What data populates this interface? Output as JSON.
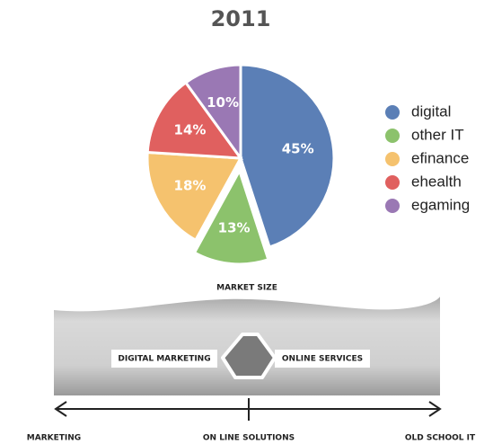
{
  "chart_data": {
    "type": "pie",
    "title": "2011",
    "categories": [
      "digital",
      "other IT",
      "efinance",
      "ehealth",
      "egaming"
    ],
    "values": [
      45,
      13,
      18,
      14,
      10
    ],
    "value_labels": [
      "45%",
      "13%",
      "18%",
      "14%",
      "10%"
    ],
    "colors": [
      "#5b7fb6",
      "#8cc26c",
      "#f5c26e",
      "#e0605f",
      "#9a78b4"
    ],
    "exploded": [
      false,
      true,
      false,
      false,
      false
    ],
    "legend": "right"
  },
  "diagram": {
    "market_size": "MARKET SIZE",
    "left_box": "DIGITAL MARKETING",
    "right_box": "ONLINE SERVICES",
    "axis_labels": [
      "MARKETING",
      "ON LINE SOLUTIONS",
      "OLD SCHOOL IT"
    ]
  }
}
